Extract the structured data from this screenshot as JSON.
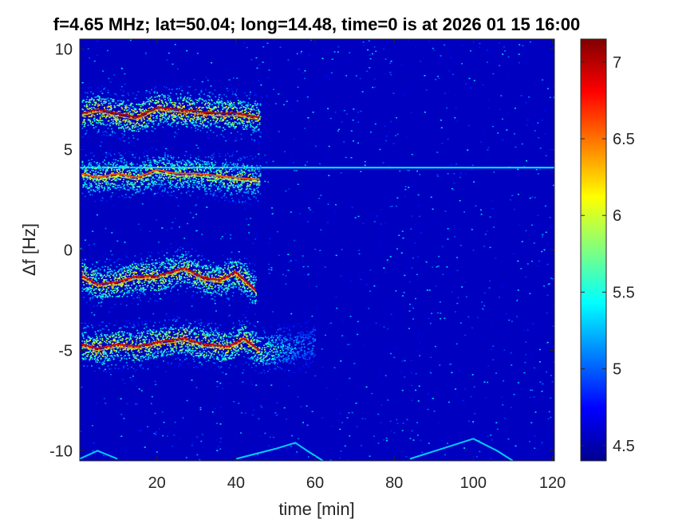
{
  "chart_data": {
    "type": "heatmap",
    "title": "f=4.65 MHz;  lat=50.04; long=14.48, time=0 is at 2026 01 15 16:00",
    "xlabel": "time [min]",
    "ylabel": "Δf [Hz]",
    "xlim": [
      0.5,
      120.5
    ],
    "ylim": [
      -10.5,
      10.5
    ],
    "xticks": [
      20,
      40,
      60,
      80,
      100,
      120
    ],
    "yticks": [
      10,
      5,
      0,
      -5,
      -10
    ],
    "colorbar": {
      "min": 4.4,
      "max": 7.15,
      "ticks": [
        7,
        6.5,
        6,
        5.5,
        5,
        4.5
      ],
      "colormap": "jet"
    },
    "background_level": 4.55,
    "constant_line": {
      "df": 4.1,
      "level": 5.4,
      "t_start": 0.5,
      "t_end": 120.5
    },
    "traces": [
      {
        "name": "",
        "points": [
          [
            1,
            6.8
          ],
          [
            5,
            7.0
          ],
          [
            10,
            6.8
          ],
          [
            15,
            6.6
          ],
          [
            20,
            7.1
          ],
          [
            25,
            7.0
          ],
          [
            30,
            6.9
          ],
          [
            35,
            6.8
          ],
          [
            40,
            6.8
          ],
          [
            46,
            6.6
          ]
        ],
        "peak": 7.0
      },
      {
        "name": "",
        "points": [
          [
            1,
            3.8
          ],
          [
            5,
            3.6
          ],
          [
            10,
            3.8
          ],
          [
            15,
            3.6
          ],
          [
            20,
            4.0
          ],
          [
            25,
            3.8
          ],
          [
            30,
            3.8
          ],
          [
            35,
            3.7
          ],
          [
            40,
            3.6
          ],
          [
            46,
            3.5
          ]
        ],
        "peak": 6.6
      },
      {
        "name": "",
        "points": [
          [
            1,
            -1.3
          ],
          [
            5,
            -1.7
          ],
          [
            10,
            -1.6
          ],
          [
            15,
            -1.3
          ],
          [
            20,
            -1.3
          ],
          [
            27,
            -0.9
          ],
          [
            32,
            -1.4
          ],
          [
            36,
            -1.5
          ],
          [
            40,
            -1.1
          ],
          [
            45,
            -2.0
          ]
        ],
        "peak": 6.9
      },
      {
        "name": "",
        "points": [
          [
            1,
            -4.7
          ],
          [
            5,
            -4.9
          ],
          [
            10,
            -4.7
          ],
          [
            15,
            -4.8
          ],
          [
            20,
            -4.6
          ],
          [
            27,
            -4.4
          ],
          [
            32,
            -4.7
          ],
          [
            38,
            -4.8
          ],
          [
            42,
            -4.4
          ],
          [
            46,
            -5.0
          ],
          [
            55,
            -4.8
          ],
          [
            60,
            -4.6
          ]
        ],
        "peak": 6.9
      }
    ],
    "arcs": [
      {
        "points": [
          [
            0.5,
            -10.4
          ],
          [
            5,
            -10.0
          ],
          [
            10,
            -10.4
          ]
        ],
        "level": 5.3
      },
      {
        "points": [
          [
            40,
            -10.4
          ],
          [
            50,
            -9.9
          ],
          [
            55,
            -9.6
          ],
          [
            58,
            -10.0
          ],
          [
            62,
            -10.5
          ]
        ],
        "level": 5.3
      },
      {
        "points": [
          [
            84,
            -10.4
          ],
          [
            92,
            -9.9
          ],
          [
            100,
            -9.4
          ],
          [
            106,
            -10.0
          ],
          [
            110,
            -10.5
          ]
        ],
        "level": 5.3
      }
    ]
  }
}
